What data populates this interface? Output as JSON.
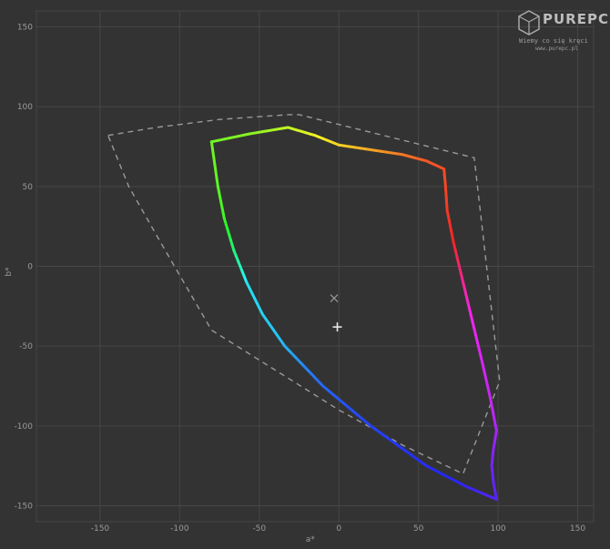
{
  "chart_data": {
    "type": "line",
    "xlabel": "a*",
    "ylabel": "b*",
    "xlim": [
      -190,
      160
    ],
    "ylim": [
      -160,
      160
    ],
    "xticks": [
      -150,
      -100,
      -50,
      0,
      50,
      100,
      150
    ],
    "yticks": [
      150,
      100,
      50,
      0,
      -50,
      -100,
      -150
    ],
    "grid": true,
    "series": [
      {
        "style": "solid-gradient",
        "points": [
          [
            66,
            61
          ],
          [
            55,
            66
          ],
          [
            40,
            70
          ],
          [
            20,
            73
          ],
          [
            0,
            76
          ],
          [
            -15,
            82
          ],
          [
            -32,
            87
          ],
          [
            -56,
            83
          ],
          [
            -80,
            78
          ],
          [
            -76,
            50
          ],
          [
            -72,
            30
          ],
          [
            -66,
            10
          ],
          [
            -58,
            -10
          ],
          [
            -48,
            -30
          ],
          [
            -34,
            -50
          ],
          [
            -10,
            -75
          ],
          [
            20,
            -100
          ],
          [
            55,
            -125
          ],
          [
            80,
            -138
          ],
          [
            99,
            -146
          ],
          [
            97,
            -135
          ],
          [
            96,
            -125
          ],
          [
            97,
            -115
          ],
          [
            99,
            -103
          ],
          [
            95,
            -82
          ],
          [
            90,
            -60
          ],
          [
            84,
            -35
          ],
          [
            78,
            -10
          ],
          [
            72,
            15
          ],
          [
            68,
            35
          ],
          [
            67,
            50
          ],
          [
            66,
            61
          ]
        ]
      },
      {
        "style": "dashed-reference",
        "points": [
          [
            -145,
            82
          ],
          [
            -115,
            87
          ],
          [
            -75,
            92
          ],
          [
            -32,
            95
          ],
          [
            -25,
            95
          ],
          [
            85,
            68
          ],
          [
            101,
            -72
          ],
          [
            78,
            -130
          ],
          [
            40,
            -112
          ],
          [
            0,
            -90
          ],
          [
            -40,
            -65
          ],
          [
            -80,
            -40
          ],
          [
            -112,
            15
          ],
          [
            -132,
            50
          ],
          [
            -145,
            82
          ]
        ]
      }
    ],
    "markers": [
      {
        "symbol": "cross-x",
        "x": -3,
        "y": -20
      },
      {
        "symbol": "cross-plus",
        "x": -1,
        "y": -38
      }
    ],
    "colors": {
      "background": "#333333",
      "grid": "#464646",
      "labels": "#9a9a9a",
      "dashed": "#9a9a9a"
    }
  },
  "logo": {
    "name": "PUREPC",
    "tagline": "Wiemy co się kręci",
    "url": "www.purepc.pl"
  }
}
